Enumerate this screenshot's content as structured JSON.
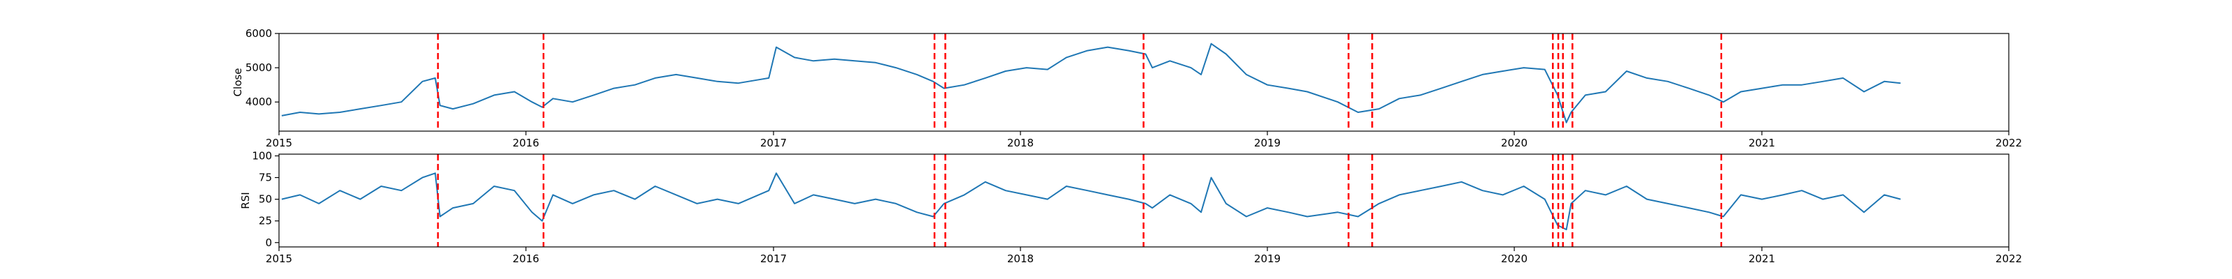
{
  "chart_data": [
    {
      "type": "line",
      "ylabel": "Close",
      "xlim": [
        "2015-01-01",
        "2022-01-01"
      ],
      "ylim": [
        3150,
        6000
      ],
      "yticks": [
        4000,
        5000,
        6000
      ],
      "xticks": [
        "2015",
        "2016",
        "2017",
        "2018",
        "2019",
        "2020",
        "2021",
        "2022"
      ],
      "line_color": "#1f77b4",
      "series": [
        {
          "x": [
            "2015-01-05",
            "2015-02-01",
            "2015-03-01",
            "2015-04-01",
            "2015-05-01",
            "2015-06-01",
            "2015-07-01",
            "2015-08-01",
            "2015-08-20",
            "2015-08-27",
            "2015-09-15",
            "2015-10-15",
            "2015-11-15",
            "2015-12-15",
            "2016-01-10",
            "2016-01-25",
            "2016-02-10",
            "2016-03-10",
            "2016-04-10",
            "2016-05-10",
            "2016-06-10",
            "2016-07-10",
            "2016-08-10",
            "2016-09-10",
            "2016-10-10",
            "2016-11-10",
            "2016-12-10",
            "2016-12-25",
            "2017-01-05",
            "2017-02-01",
            "2017-03-01",
            "2017-04-01",
            "2017-05-01",
            "2017-06-01",
            "2017-07-01",
            "2017-08-01",
            "2017-08-25",
            "2017-09-10",
            "2017-10-10",
            "2017-11-10",
            "2017-12-10",
            "2018-01-10",
            "2018-02-10",
            "2018-03-10",
            "2018-04-10",
            "2018-05-10",
            "2018-06-10",
            "2018-07-05",
            "2018-07-15",
            "2018-08-10",
            "2018-09-10",
            "2018-09-25",
            "2018-10-10",
            "2018-11-01",
            "2018-12-01",
            "2019-01-01",
            "2019-02-01",
            "2019-03-01",
            "2019-04-15",
            "2019-05-15",
            "2019-06-15",
            "2019-07-15",
            "2019-08-15",
            "2019-09-15",
            "2019-10-15",
            "2019-11-15",
            "2019-12-15",
            "2020-01-15",
            "2020-02-15",
            "2020-03-05",
            "2020-03-18",
            "2020-03-25",
            "2020-04-15",
            "2020-05-15",
            "2020-06-15",
            "2020-07-15",
            "2020-08-15",
            "2020-09-15",
            "2020-10-15",
            "2020-11-05",
            "2020-12-01",
            "2021-01-01",
            "2021-02-01",
            "2021-03-01",
            "2021-04-01",
            "2021-05-01",
            "2021-06-01",
            "2021-07-01",
            "2021-07-25"
          ],
          "y": [
            3600,
            3700,
            3650,
            3700,
            3800,
            3900,
            4000,
            4600,
            4700,
            3900,
            3800,
            3950,
            4200,
            4300,
            4000,
            3850,
            4100,
            4000,
            4200,
            4400,
            4500,
            4700,
            4800,
            4700,
            4600,
            4550,
            4650,
            4700,
            5600,
            5300,
            5200,
            5250,
            5200,
            5150,
            5000,
            4800,
            4600,
            4400,
            4500,
            4700,
            4900,
            5000,
            4950,
            5300,
            5500,
            5600,
            5500,
            5400,
            5000,
            5200,
            5000,
            4800,
            5700,
            5400,
            4800,
            4500,
            4400,
            4300,
            4000,
            3700,
            3800,
            4100,
            4200,
            4400,
            4600,
            4800,
            4900,
            5000,
            4950,
            4200,
            3400,
            3700,
            4200,
            4300,
            4900,
            4700,
            4600,
            4400,
            4200,
            4000,
            4300,
            4400,
            4500,
            4500,
            4600,
            4700,
            4300,
            4600,
            4550
          ]
        }
      ]
    },
    {
      "type": "line",
      "ylabel": "RSI",
      "xlim": [
        "2015-01-01",
        "2022-01-01"
      ],
      "ylim": [
        -5,
        102
      ],
      "yticks": [
        0,
        25,
        50,
        75,
        100
      ],
      "xticks": [
        "2015",
        "2016",
        "2017",
        "2018",
        "2019",
        "2020",
        "2021",
        "2022"
      ],
      "line_color": "#1f77b4",
      "series": [
        {
          "x": [
            "2015-01-05",
            "2015-02-01",
            "2015-03-01",
            "2015-04-01",
            "2015-05-01",
            "2015-06-01",
            "2015-07-01",
            "2015-08-01",
            "2015-08-20",
            "2015-08-27",
            "2015-09-15",
            "2015-10-15",
            "2015-11-15",
            "2015-12-15",
            "2016-01-10",
            "2016-01-25",
            "2016-02-10",
            "2016-03-10",
            "2016-04-10",
            "2016-05-10",
            "2016-06-10",
            "2016-07-10",
            "2016-08-10",
            "2016-09-10",
            "2016-10-10",
            "2016-11-10",
            "2016-12-10",
            "2016-12-25",
            "2017-01-05",
            "2017-02-01",
            "2017-03-01",
            "2017-04-01",
            "2017-05-01",
            "2017-06-01",
            "2017-07-01",
            "2017-08-01",
            "2017-08-25",
            "2017-09-10",
            "2017-10-10",
            "2017-11-10",
            "2017-12-10",
            "2018-01-10",
            "2018-02-10",
            "2018-03-10",
            "2018-04-10",
            "2018-05-10",
            "2018-06-10",
            "2018-07-05",
            "2018-07-15",
            "2018-08-10",
            "2018-09-10",
            "2018-09-25",
            "2018-10-10",
            "2018-11-01",
            "2018-12-01",
            "2019-01-01",
            "2019-02-01",
            "2019-03-01",
            "2019-04-15",
            "2019-05-15",
            "2019-06-15",
            "2019-07-15",
            "2019-08-15",
            "2019-09-15",
            "2019-10-15",
            "2019-11-15",
            "2019-12-15",
            "2020-01-15",
            "2020-02-15",
            "2020-03-05",
            "2020-03-18",
            "2020-03-25",
            "2020-04-15",
            "2020-05-15",
            "2020-06-15",
            "2020-07-15",
            "2020-08-15",
            "2020-09-15",
            "2020-10-15",
            "2020-11-05",
            "2020-12-01",
            "2021-01-01",
            "2021-02-01",
            "2021-03-01",
            "2021-04-01",
            "2021-05-01",
            "2021-06-01",
            "2021-07-01",
            "2021-07-25"
          ],
          "y": [
            50,
            55,
            45,
            60,
            50,
            65,
            60,
            75,
            80,
            30,
            40,
            45,
            65,
            60,
            35,
            25,
            55,
            45,
            55,
            60,
            50,
            65,
            55,
            45,
            50,
            45,
            55,
            60,
            80,
            45,
            55,
            50,
            45,
            50,
            45,
            35,
            30,
            45,
            55,
            70,
            60,
            55,
            50,
            65,
            60,
            55,
            50,
            45,
            40,
            55,
            45,
            35,
            75,
            45,
            30,
            40,
            35,
            30,
            35,
            30,
            45,
            55,
            60,
            65,
            70,
            60,
            55,
            65,
            50,
            20,
            15,
            45,
            60,
            55,
            65,
            50,
            45,
            40,
            35,
            30,
            55,
            50,
            55,
            60,
            50,
            55,
            35,
            55,
            50
          ]
        }
      ]
    }
  ],
  "events": {
    "color": "#ff0000",
    "dates": [
      "2015-08-24",
      "2016-01-27",
      "2017-08-27",
      "2017-09-12",
      "2018-07-02",
      "2019-05-01",
      "2019-06-05",
      "2020-02-27",
      "2020-03-06",
      "2020-03-13",
      "2020-03-27",
      "2020-11-02"
    ]
  }
}
